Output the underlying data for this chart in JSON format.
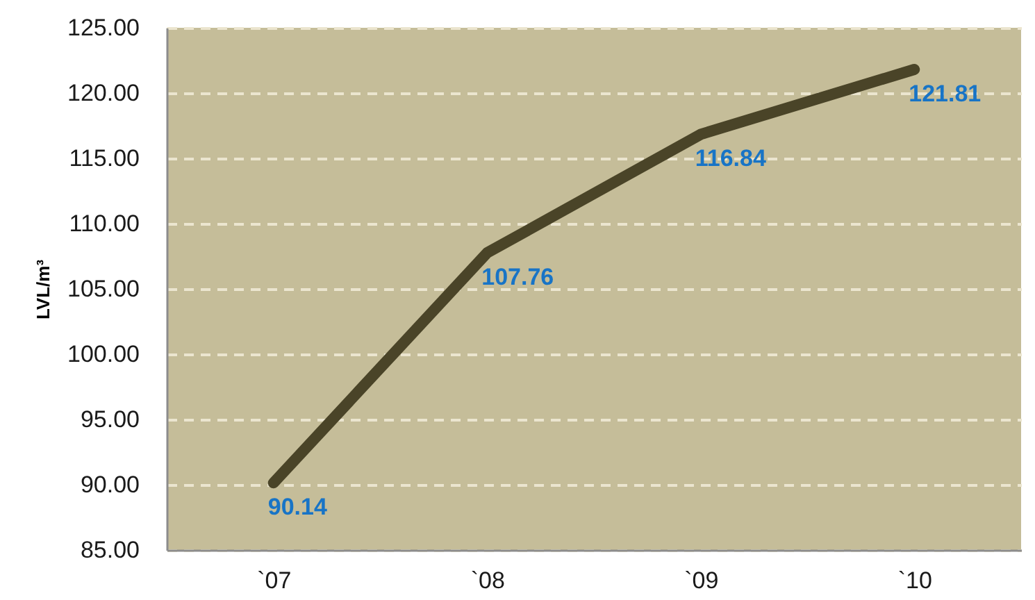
{
  "chart_data": {
    "type": "line",
    "ylabel": "LVL/m³",
    "categories": [
      "`07",
      "`08",
      "`09",
      "`10"
    ],
    "values": [
      90.14,
      107.76,
      116.84,
      121.81
    ],
    "color": "#4a4428",
    "ylim": [
      85,
      125
    ],
    "yticks": [
      {
        "value": 85,
        "label": "85.00"
      },
      {
        "value": 90,
        "label": "90.00"
      },
      {
        "value": 95,
        "label": "95.00"
      },
      {
        "value": 100,
        "label": "100.00"
      },
      {
        "value": 105,
        "label": "105.00"
      },
      {
        "value": 110,
        "label": "110.00"
      },
      {
        "value": 115,
        "label": "115.00"
      },
      {
        "value": 120,
        "label": "120.00"
      },
      {
        "value": 125,
        "label": "125.00"
      }
    ],
    "grid": "y",
    "data_labels": true
  }
}
